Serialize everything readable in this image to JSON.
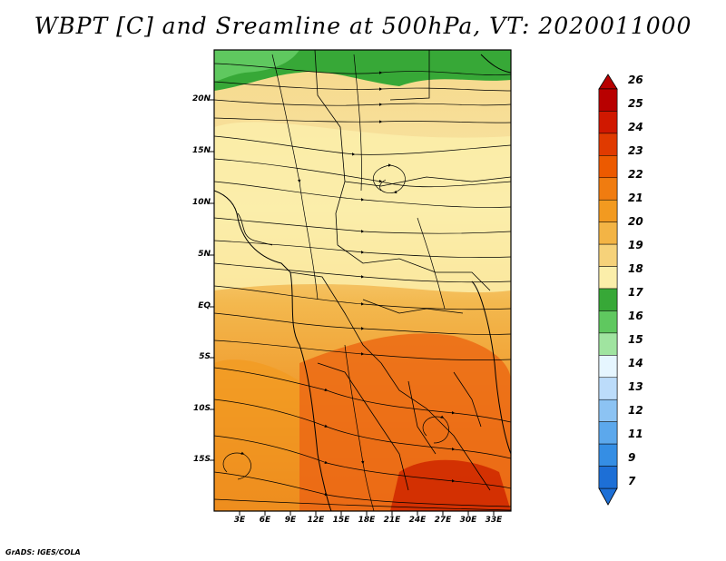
{
  "title": "WBPT [C] and Sreamline at 500hPa, VT: 2020011000",
  "credit": "GrADS: IGES/COLA",
  "map": {
    "variable": "Wet-bulb potential temperature",
    "level": "500hPa",
    "lat_labels": [
      "20N",
      "15N",
      "10N",
      "5N",
      "EQ",
      "5S",
      "10S",
      "15S"
    ],
    "lon_labels": [
      "3E",
      "6E",
      "9E",
      "12E",
      "15E",
      "18E",
      "21E",
      "24E",
      "27E",
      "30E",
      "33E"
    ]
  },
  "colorbar": {
    "labels": [
      "26",
      "25",
      "24",
      "23",
      "22",
      "21",
      "20",
      "19",
      "18",
      "17",
      "16",
      "15",
      "14",
      "13",
      "12",
      "11",
      "9",
      "7"
    ],
    "colors": [
      "#b80000",
      "#d01800",
      "#e03a00",
      "#ec5a00",
      "#f07c10",
      "#f29a20",
      "#f3b445",
      "#f6d27a",
      "#fbeeaa",
      "#37a837",
      "#5fc85f",
      "#a0e4a0",
      "#e6f6ff",
      "#bcdcfa",
      "#8cc3f3",
      "#5ca8ec",
      "#358ee4",
      "#1d6fd6"
    ]
  }
}
